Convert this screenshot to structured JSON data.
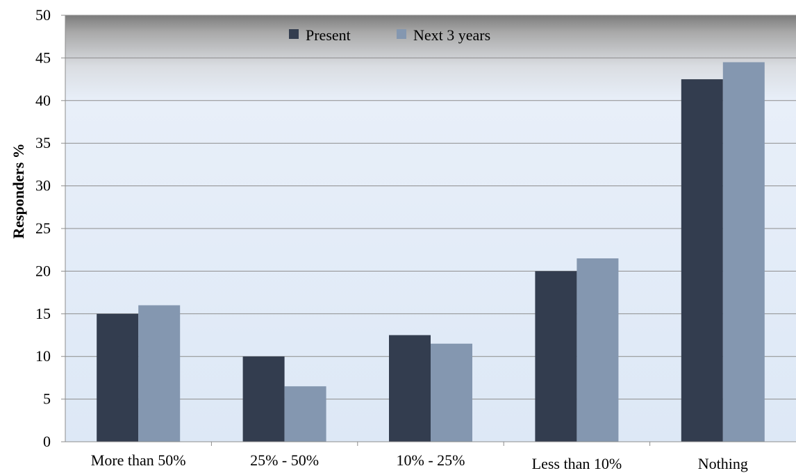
{
  "chart_data": {
    "type": "bar",
    "categories": [
      "More than 50%",
      "25% - 50%",
      "10% - 25%",
      "Less than 10%",
      "Nothing"
    ],
    "series": [
      {
        "name": "Present",
        "values": [
          15,
          10,
          12.5,
          20,
          42.5
        ],
        "color": "#333d4f"
      },
      {
        "name": "Next 3 years",
        "values": [
          16,
          6.5,
          11.5,
          21.5,
          44.5
        ],
        "color": "#8497b0"
      }
    ],
    "ylabel": "Responders %",
    "xlabel": "",
    "ylim": [
      0,
      50
    ],
    "yticks": [
      0,
      5,
      10,
      15,
      20,
      25,
      30,
      35,
      40,
      45,
      50
    ],
    "grid": true,
    "legend_position": "top-center"
  }
}
